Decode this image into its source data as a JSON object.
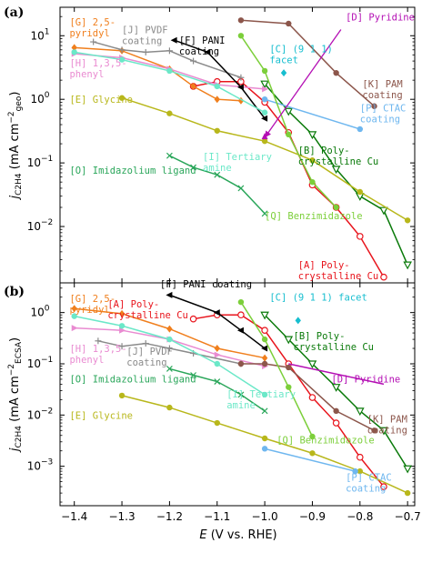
{
  "figure": {
    "xlabel_main": "E",
    "xlabel_rest": " (V vs. RHE)"
  },
  "chart_data": [
    {
      "type": "line",
      "panel": "(a)",
      "ylabel_main": "j",
      "ylabel_sub": "C2H4",
      "ylabel_unit_pre": " (mA cm",
      "ylabel_unit_sup": "−2",
      "ylabel_unit_sub": "geo",
      "ylabel_unit_post": ")",
      "y_scale": "log",
      "x_range": [
        -1.43,
        -0.685
      ],
      "y_range": [
        0.0013,
        28
      ],
      "x_ticks": [
        -1.4,
        -1.3,
        -1.2,
        -1.1,
        -1.0,
        -0.9,
        -0.8,
        -0.7
      ],
      "y_ticks": [
        {
          "value": 0.01,
          "label": "10"
        },
        {
          "value": 0.1,
          "label": "10"
        },
        {
          "value": 1,
          "label": "10"
        },
        {
          "value": 10,
          "label": "10"
        }
      ],
      "y_tick_exponents": [
        "−2",
        "−1",
        "0",
        "1"
      ],
      "series": [
        {
          "id": "A",
          "color": "#e8141c",
          "marker": "circle-open",
          "x": [
            -1.15,
            -1.1,
            -1.05,
            -1.0,
            -0.95,
            -0.9,
            -0.85,
            -0.8,
            -0.75
          ],
          "y": [
            1.6,
            1.9,
            1.9,
            0.9,
            0.3,
            0.045,
            0.02,
            0.007,
            0.0016
          ]
        },
        {
          "id": "B",
          "color": "#0a7a0a",
          "marker": "triangle-down-open",
          "x": [
            -1.0,
            -0.95,
            -0.9,
            -0.85,
            -0.8,
            -0.75,
            -0.7
          ],
          "y": [
            1.75,
            0.65,
            0.28,
            0.08,
            0.03,
            0.018,
            0.0025
          ]
        },
        {
          "id": "G",
          "color": "#f07f1d",
          "marker": "diamond",
          "x": [
            -1.4,
            -1.3,
            -1.2,
            -1.15,
            -1.1,
            -1.05
          ],
          "y": [
            6.5,
            5.8,
            3.0,
            1.6,
            1.0,
            0.95
          ]
        },
        {
          "id": "H",
          "color": "#e98bd1",
          "marker": "triangle-right",
          "x": [
            -1.4,
            -1.3,
            -1.2,
            -1.1,
            -1.0
          ],
          "y": [
            5.2,
            4.5,
            3.0,
            1.7,
            1.45
          ]
        },
        {
          "id": "J",
          "color": "#8a8a8a",
          "marker": "plus",
          "x": [
            -1.36,
            -1.3,
            -1.25,
            -1.2,
            -1.15,
            -1.05
          ],
          "y": [
            8.0,
            6.0,
            5.5,
            5.8,
            4.0,
            2.2
          ]
        },
        {
          "id": "E",
          "color": "#b8b71b",
          "marker": "circle",
          "x": [
            -1.3,
            -1.2,
            -1.1,
            -1.0,
            -0.9,
            -0.8,
            -0.7
          ],
          "y": [
            1.05,
            0.6,
            0.32,
            0.22,
            0.11,
            0.035,
            0.0125
          ]
        },
        {
          "id": "F",
          "color": "#000000",
          "marker": "triangle-left",
          "x": [
            -1.19,
            -1.12,
            -1.05,
            -1.0
          ],
          "y": [
            8.5,
            5.5,
            1.55,
            0.5
          ]
        },
        {
          "id": "K",
          "color": "#8c564b",
          "marker": "circle",
          "x": [
            -1.05,
            -0.95,
            -0.85,
            -0.77
          ],
          "y": [
            17.5,
            15.5,
            2.6,
            0.78
          ]
        },
        {
          "id": "C",
          "color": "#17becf",
          "marker": "diamond",
          "x": [
            -0.96
          ],
          "y": [
            2.6
          ]
        },
        {
          "id": "P",
          "color": "#6fb7ef",
          "marker": "circle",
          "x": [
            -1.0,
            -0.8
          ],
          "y": [
            1.0,
            0.34
          ]
        },
        {
          "id": "Q",
          "color": "#7ccf3a",
          "marker": "circle",
          "x": [
            -1.05,
            -1.0,
            -0.95,
            -0.9,
            -0.85
          ],
          "y": [
            10,
            2.8,
            0.28,
            0.05,
            0.02
          ]
        },
        {
          "id": "I",
          "color": "#6be8c8",
          "marker": "circle",
          "x": [
            -1.4,
            -1.3,
            -1.2,
            -1.1,
            -1.0
          ],
          "y": [
            5.5,
            4.2,
            2.8,
            1.6,
            0.62
          ]
        },
        {
          "id": "O",
          "color": "#2aa65a",
          "marker": "cross",
          "x": [
            -1.2,
            -1.15,
            -1.1,
            -1.05,
            -1.0
          ],
          "y": [
            0.13,
            0.085,
            0.065,
            0.04,
            0.016
          ]
        },
        {
          "id": "D",
          "color": "#b40fb4",
          "marker": "triangle-up",
          "x": [
            -1.0
          ],
          "y": [
            0.26
          ]
        }
      ],
      "annotations": [
        {
          "lines": [
            "[G] 2,5-",
            "pyridyl"
          ],
          "color": "#f07f1d",
          "x": -1.41,
          "y": 14.5
        },
        {
          "lines": [
            "[J] PVDF",
            "coating"
          ],
          "color": "#8a8a8a",
          "x": -1.3,
          "y": 11.0
        },
        {
          "lines": [
            "[F] PANI",
            "coating"
          ],
          "color": "#000000",
          "x": -1.18,
          "y": 7.5
        },
        {
          "lines": [
            "[D] Pyridine"
          ],
          "color": "#b40fb4",
          "x": -0.83,
          "y": 17.5
        },
        {
          "lines": [
            "[H] 1,3,5-",
            "phenyl"
          ],
          "color": "#e98bd1",
          "x": -1.41,
          "y": 3.3
        },
        {
          "lines": [
            "[C] (9 1 1)",
            "facet"
          ],
          "color": "#17becf",
          "x": -0.99,
          "y": 5.5
        },
        {
          "lines": [
            "[K] PAM",
            "coating"
          ],
          "color": "#8c564b",
          "x": -0.795,
          "y": 1.55
        },
        {
          "lines": [
            "[E] Glycine"
          ],
          "color": "#b8b71b",
          "x": -1.41,
          "y": 0.88
        },
        {
          "lines": [
            "[P] CTAC",
            "coating"
          ],
          "color": "#6fb7ef",
          "x": -0.8,
          "y": 0.65
        },
        {
          "lines": [
            "[I] Tertiary",
            "amine"
          ],
          "color": "#6be8c8",
          "x": -1.13,
          "y": 0.11
        },
        {
          "lines": [
            "[B] Poly-",
            "crystalline Cu"
          ],
          "color": "#0a7a0a",
          "x": -0.93,
          "y": 0.14
        },
        {
          "lines": [
            "[O] Imidazolium ligand"
          ],
          "color": "#2aa65a",
          "x": -1.41,
          "y": 0.068
        },
        {
          "lines": [
            "[Q] Benzimidazole"
          ],
          "color": "#7ccf3a",
          "x": -1.0,
          "y": 0.013
        },
        {
          "lines": [
            "[A] Poly-",
            "crystalline Cu"
          ],
          "color": "#e8141c",
          "x": -0.93,
          "y": 0.0022
        }
      ],
      "arrows": [
        {
          "color": "#b40fb4",
          "from": [
            -0.84,
            12.5
          ],
          "to": [
            -1.0,
            0.25
          ]
        }
      ]
    },
    {
      "type": "line",
      "panel": "(b)",
      "ylabel_main": "j",
      "ylabel_sub": "C2H4",
      "ylabel_unit_pre": " (mA cm",
      "ylabel_unit_sup": "−2",
      "ylabel_unit_sub": "ECSA",
      "ylabel_unit_post": ")",
      "y_scale": "log",
      "x_range": [
        -1.43,
        -0.685
      ],
      "y_range": [
        0.00017,
        3.8
      ],
      "x_ticks": [
        -1.4,
        -1.3,
        -1.2,
        -1.1,
        -1.0,
        -0.9,
        -0.8,
        -0.7
      ],
      "x_tick_labels": [
        "−1.4",
        "−1.3",
        "−1.2",
        "−1.1",
        "−1.0",
        "−0.9",
        "−0.8",
        "−0.7"
      ],
      "y_ticks": [
        {
          "value": 0.001,
          "label": "10"
        },
        {
          "value": 0.01,
          "label": "10"
        },
        {
          "value": 0.1,
          "label": "10"
        },
        {
          "value": 1,
          "label": "10"
        }
      ],
      "y_tick_exponents": [
        "−3",
        "−2",
        "−1",
        "0"
      ],
      "series": [
        {
          "id": "A",
          "color": "#e8141c",
          "marker": "circle-open",
          "x": [
            -1.15,
            -1.1,
            -1.05,
            -1.0,
            -0.95,
            -0.9,
            -0.85,
            -0.8,
            -0.75
          ],
          "y": [
            0.75,
            0.9,
            0.9,
            0.45,
            0.1,
            0.022,
            0.007,
            0.0015,
            0.0004
          ]
        },
        {
          "id": "B",
          "color": "#0a7a0a",
          "marker": "triangle-down-open",
          "x": [
            -1.0,
            -0.95,
            -0.9,
            -0.85,
            -0.8,
            -0.75,
            -0.7
          ],
          "y": [
            0.9,
            0.3,
            0.1,
            0.035,
            0.012,
            0.005,
            0.0009
          ]
        },
        {
          "id": "G",
          "color": "#f07f1d",
          "marker": "diamond",
          "x": [
            -1.4,
            -1.3,
            -1.2,
            -1.1,
            -1.0
          ],
          "y": [
            1.2,
            0.95,
            0.48,
            0.2,
            0.13
          ]
        },
        {
          "id": "H",
          "color": "#e98bd1",
          "marker": "triangle-right",
          "x": [
            -1.4,
            -1.3,
            -1.2,
            -1.1,
            -1.0
          ],
          "y": [
            0.5,
            0.45,
            0.3,
            0.15,
            0.09
          ]
        },
        {
          "id": "J",
          "color": "#8a8a8a",
          "marker": "plus",
          "x": [
            -1.35,
            -1.3,
            -1.25,
            -1.2,
            -1.15,
            -1.05
          ],
          "y": [
            0.28,
            0.22,
            0.25,
            0.2,
            0.16,
            0.1
          ]
        },
        {
          "id": "E",
          "color": "#b8b71b",
          "marker": "circle",
          "x": [
            -1.3,
            -1.2,
            -1.1,
            -1.0,
            -0.9,
            -0.8,
            -0.7
          ],
          "y": [
            0.024,
            0.014,
            0.007,
            0.0035,
            0.0018,
            0.0008,
            0.0003
          ]
        },
        {
          "id": "F",
          "color": "#000000",
          "marker": "triangle-left",
          "x": [
            -1.2,
            -1.1,
            -1.05,
            -1.0
          ],
          "y": [
            2.2,
            1.0,
            0.45,
            0.2
          ]
        },
        {
          "id": "K",
          "color": "#8c564b",
          "marker": "circle",
          "x": [
            -1.05,
            -1.0,
            -0.95,
            -0.85,
            -0.77
          ],
          "y": [
            0.1,
            0.1,
            0.085,
            0.012,
            0.005
          ]
        },
        {
          "id": "C",
          "color": "#17becf",
          "marker": "diamond",
          "x": [
            -0.93
          ],
          "y": [
            0.7
          ]
        },
        {
          "id": "P",
          "color": "#6fb7ef",
          "marker": "circle",
          "x": [
            -1.0,
            -0.81
          ],
          "y": [
            0.0022,
            0.0008
          ]
        },
        {
          "id": "Q",
          "color": "#7ccf3a",
          "marker": "circle",
          "x": [
            -1.05,
            -1.0,
            -0.95,
            -0.9
          ],
          "y": [
            1.6,
            0.3,
            0.035,
            0.0038
          ]
        },
        {
          "id": "I",
          "color": "#6be8c8",
          "marker": "circle",
          "x": [
            -1.4,
            -1.3,
            -1.2,
            -1.1,
            -1.0
          ],
          "y": [
            0.85,
            0.55,
            0.3,
            0.1,
            0.025
          ]
        },
        {
          "id": "O",
          "color": "#2aa65a",
          "marker": "cross",
          "x": [
            -1.2,
            -1.15,
            -1.1,
            -1.05,
            -1.0
          ],
          "y": [
            0.08,
            0.06,
            0.045,
            0.025,
            0.012
          ]
        },
        {
          "id": "D",
          "color": "#b40fb4",
          "marker": "line-only",
          "x": [
            -0.95,
            -0.75
          ],
          "y": [
            0.1,
            0.04
          ]
        }
      ],
      "annotations": [
        {
          "lines": [
            "[F] PANI coating"
          ],
          "color": "#000000",
          "x": -1.22,
          "y": 3.1
        },
        {
          "lines": [
            "[G] 2,5-",
            "pyridyl"
          ],
          "color": "#f07f1d",
          "x": -1.41,
          "y": 1.6
        },
        {
          "lines": [
            "[A] Poly-",
            "crystalline Cu"
          ],
          "color": "#e8141c",
          "x": -1.33,
          "y": 1.25
        },
        {
          "lines": [
            "[C] (9 1 1) facet"
          ],
          "color": "#17becf",
          "x": -0.99,
          "y": 1.7
        },
        {
          "lines": [
            "[B] Poly-",
            "crystalline Cu"
          ],
          "color": "#0a7a0a",
          "x": -0.94,
          "y": 0.3
        },
        {
          "lines": [
            "[H] 1,3,5-",
            "phenyl"
          ],
          "color": "#e98bd1",
          "x": -1.41,
          "y": 0.17
        },
        {
          "lines": [
            "[J] PVDF",
            "coating"
          ],
          "color": "#8a8a8a",
          "x": -1.29,
          "y": 0.15
        },
        {
          "lines": [
            "[D] Pyridine"
          ],
          "color": "#b40fb4",
          "x": -0.86,
          "y": 0.043
        },
        {
          "lines": [
            "[O] Imidazolium ligand"
          ],
          "color": "#2aa65a",
          "x": -1.41,
          "y": 0.043
        },
        {
          "lines": [
            "[I] Tertiary",
            "amine"
          ],
          "color": "#6be8c8",
          "x": -1.08,
          "y": 0.022
        },
        {
          "lines": [
            "[E] Glycine"
          ],
          "color": "#b8b71b",
          "x": -1.41,
          "y": 0.0085
        },
        {
          "lines": [
            "[K] PAM",
            "coating"
          ],
          "color": "#8c564b",
          "x": -0.785,
          "y": 0.0072
        },
        {
          "lines": [
            "[Q] Benzimidazole"
          ],
          "color": "#7ccf3a",
          "x": -0.975,
          "y": 0.0028
        },
        {
          "lines": [
            "[P] CTAC",
            "coating"
          ],
          "color": "#6fb7ef",
          "x": -0.83,
          "y": 0.00052
        }
      ],
      "arrows": []
    }
  ]
}
